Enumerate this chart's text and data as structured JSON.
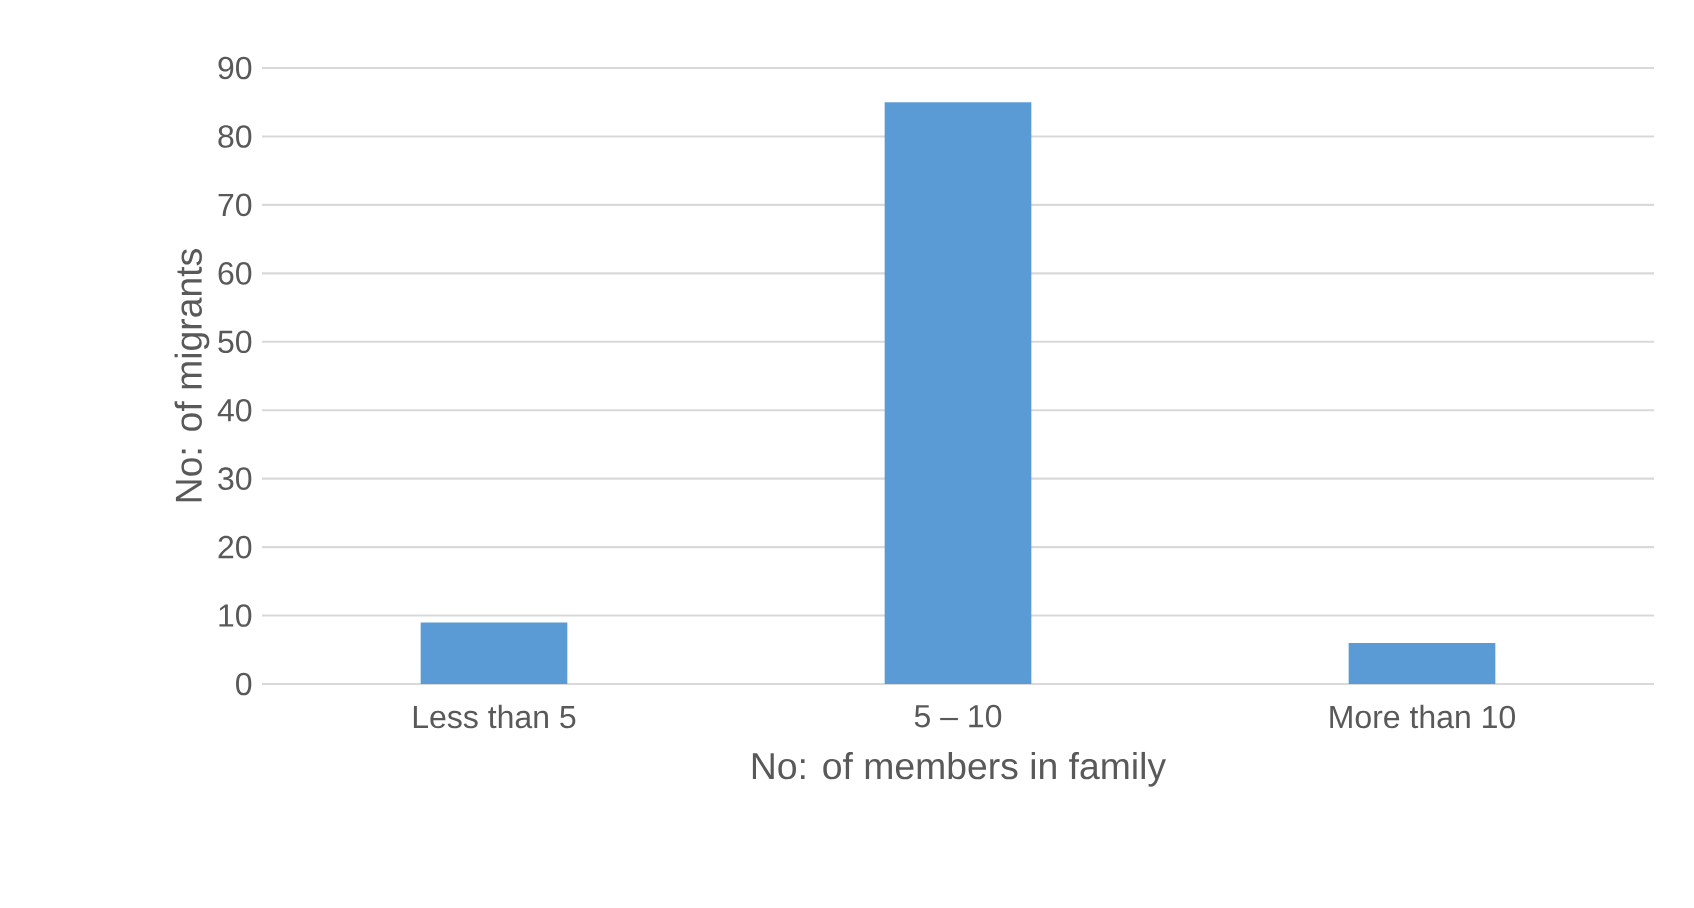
{
  "chart_data": {
    "type": "bar",
    "xlabel": "No: of members in family",
    "ylabel": "No: of migrants",
    "categories": [
      "Less than 5",
      "5 – 10",
      "More than 10"
    ],
    "values": [
      9,
      85,
      6
    ],
    "color": "#5b9bd5",
    "ylim": [
      0,
      90
    ],
    "yticks": [
      0,
      10,
      20,
      30,
      40,
      50,
      60,
      70,
      80,
      90
    ],
    "grid": "y"
  }
}
